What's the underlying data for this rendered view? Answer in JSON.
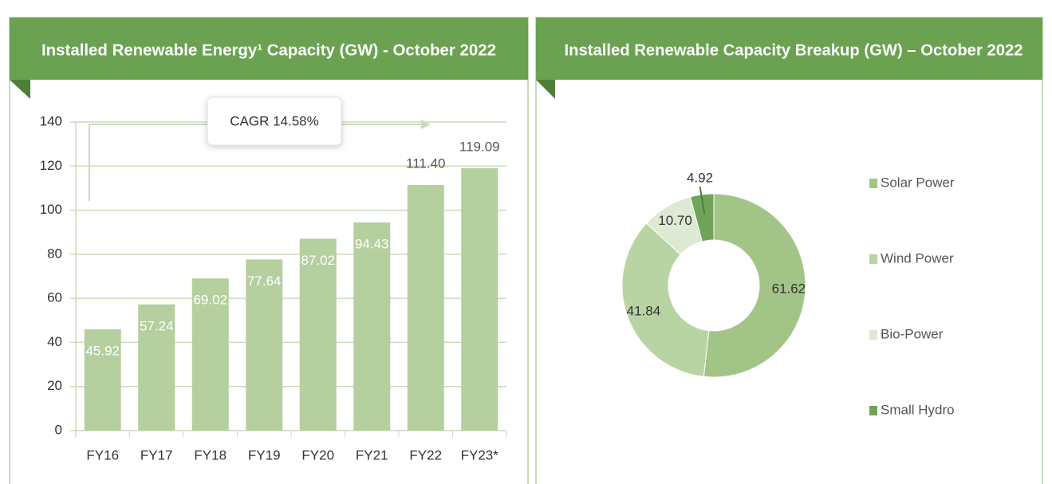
{
  "chart_data": [
    {
      "type": "bar",
      "title": "Installed Renewable Energy¹ Capacity (GW) - October 2022",
      "categories": [
        "FY16",
        "FY17",
        "FY18",
        "FY19",
        "FY20",
        "FY21",
        "FY22",
        "FY23*"
      ],
      "values": [
        45.92,
        57.24,
        69.02,
        77.64,
        87.02,
        94.43,
        111.4,
        119.09
      ],
      "value_labels": [
        "45.92",
        "57.24",
        "69.02",
        "77.64",
        "87.02",
        "94.43",
        "111.40",
        "119.09"
      ],
      "color": "#b5cf9f",
      "ylim": [
        0,
        140
      ],
      "yticks": [
        0,
        20,
        40,
        60,
        80,
        100,
        120,
        140
      ],
      "grid": true,
      "annotation": "CAGR 14.58%"
    },
    {
      "type": "donut",
      "title": "Installed Renewable Capacity Breakup (GW) – October 2022",
      "categories": [
        "Solar Power",
        "Wind Power",
        "Bio-Power",
        "Small Hydro"
      ],
      "values": [
        61.62,
        41.84,
        10.7,
        4.92
      ],
      "value_labels": [
        "61.62",
        "41.84",
        "10.70",
        "4.92"
      ],
      "colors": [
        "#a2c487",
        "#b9d4a3",
        "#dde9d2",
        "#6fa45a"
      ],
      "legend": "right"
    }
  ]
}
